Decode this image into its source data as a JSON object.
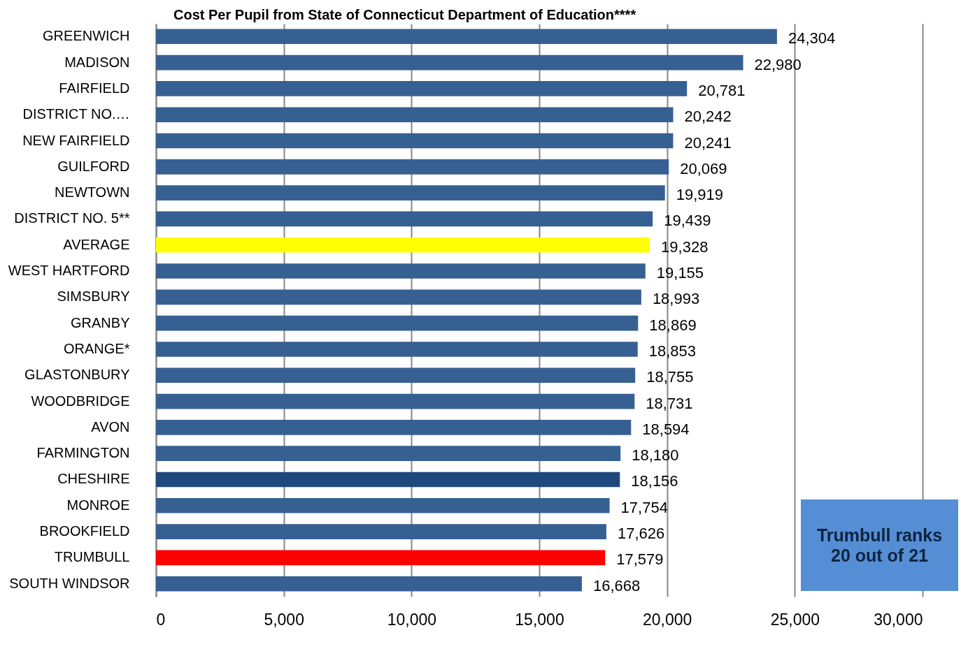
{
  "chart_data": {
    "type": "bar",
    "orientation": "horizontal",
    "title": "Cost Per Pupil from State of Connecticut Department of Education****",
    "categories": [
      "GREENWICH",
      "MADISON",
      "FAIRFIELD",
      "DISTRICT NO.…",
      "NEW FAIRFIELD",
      "GUILFORD",
      "NEWTOWN",
      "DISTRICT NO. 5**",
      "AVERAGE",
      "WEST HARTFORD",
      "SIMSBURY",
      "GRANBY",
      "ORANGE*",
      "GLASTONBURY",
      "WOODBRIDGE",
      "AVON",
      "FARMINGTON",
      "CHESHIRE",
      "MONROE",
      "BROOKFIELD",
      "TRUMBULL",
      "SOUTH WINDSOR"
    ],
    "values": [
      24304,
      22980,
      20781,
      20242,
      20241,
      20069,
      19919,
      19439,
      19328,
      19155,
      18993,
      18869,
      18853,
      18755,
      18731,
      18594,
      18180,
      18156,
      17754,
      17626,
      17579,
      16668
    ],
    "colors": [
      "#376092",
      "#376092",
      "#376092",
      "#376092",
      "#376092",
      "#376092",
      "#376092",
      "#376092",
      "#ffff00",
      "#376092",
      "#376092",
      "#376092",
      "#376092",
      "#376092",
      "#376092",
      "#376092",
      "#376092",
      "#1f497d",
      "#376092",
      "#376092",
      "#ff0000",
      "#376092"
    ],
    "xlim": [
      0,
      30000
    ],
    "xticks": [
      0,
      {
        "value": 5000,
        "label": "5,000"
      },
      {
        "value": 10000,
        "label": "10,000"
      },
      {
        "value": 15000,
        "label": "15,000"
      },
      {
        "value": 20000,
        "label": "20,000"
      },
      {
        "value": 25000,
        "label": "25,000"
      },
      {
        "value": 30000,
        "label": "30,000"
      }
    ],
    "grid": "x",
    "value_labels": [
      "24,304",
      "22,980",
      "20,781",
      "20,242",
      "20,241",
      "20,069",
      "19,919",
      "19,439",
      "19,328",
      "19,155",
      "18,993",
      "18,869",
      "18,853",
      "18,755",
      "18,731",
      "18,594",
      "18,180",
      "18,156",
      "17,754",
      "17,626",
      "17,579",
      "16,668"
    ],
    "annotations": [
      "Trumbull ranks 20 out of 21"
    ]
  }
}
